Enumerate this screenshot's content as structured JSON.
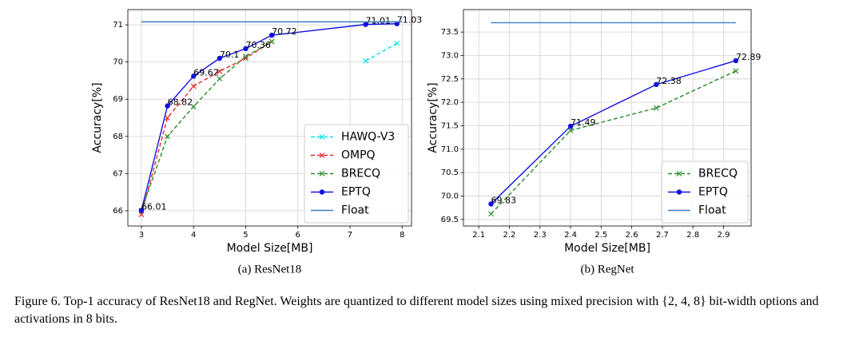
{
  "chart_data": [
    {
      "type": "line",
      "title": "(a) ResNet18",
      "xlabel": "Model Size[MB]",
      "ylabel": "Accuracy[%]",
      "xlim": [
        2.74,
        8.18
      ],
      "ylim": [
        65.59,
        71.41
      ],
      "xticks": [
        3,
        4,
        5,
        6,
        7,
        8
      ],
      "yticks": [
        66,
        67,
        68,
        69,
        70,
        71
      ],
      "grid": true,
      "legend": "lower right",
      "series": [
        {
          "name": "HAWQ-V3",
          "color": "#00e5e5",
          "marker": "x",
          "linestyle": "dashed",
          "x": [
            7.3,
            7.9
          ],
          "values": [
            70.03,
            70.5
          ]
        },
        {
          "name": "OMPQ",
          "color": "#e8262a",
          "marker": "x",
          "linestyle": "dashed",
          "x": [
            3,
            3.5,
            4,
            4.5,
            5,
            5.5
          ],
          "values": [
            65.9,
            68.5,
            69.35,
            69.75,
            70.1,
            70.55
          ]
        },
        {
          "name": "BRECQ",
          "color": "#2a8a2a",
          "marker": "x",
          "linestyle": "dashed",
          "x": [
            3,
            3.5,
            4,
            4.5,
            5,
            5.5
          ],
          "values": [
            66.0,
            68.0,
            68.8,
            69.55,
            70.15,
            70.55
          ]
        },
        {
          "name": "EPTQ",
          "color": "#1010e0",
          "marker": "o",
          "linestyle": "solid",
          "show_values": true,
          "x": [
            3,
            3.5,
            4,
            4.5,
            5,
            5.5,
            7.3,
            7.9
          ],
          "values": [
            66.01,
            68.82,
            69.62,
            70.1,
            70.36,
            70.72,
            71.01,
            71.03
          ]
        },
        {
          "name": "Float",
          "color": "#3a7ebf",
          "marker": null,
          "linestyle": "solid",
          "x": [
            3,
            8
          ],
          "values": [
            71.08,
            71.08
          ]
        }
      ]
    },
    {
      "type": "line",
      "title": "(b) RegNet",
      "xlabel": "Model Size[MB]",
      "ylabel": "Accuracy[%]",
      "xlim": [
        2.05,
        2.99
      ],
      "ylim": [
        69.36,
        73.98
      ],
      "xticks": [
        2.1,
        2.2,
        2.3,
        2.4,
        2.5,
        2.6,
        2.7,
        2.8,
        2.9
      ],
      "yticks": [
        69.5,
        {
          "value": 70,
          "label": "70.0"
        },
        70.5,
        {
          "value": 71,
          "label": "71.0"
        },
        71.5,
        {
          "value": 72,
          "label": "72.0"
        },
        72.5,
        {
          "value": 73,
          "label": "73.0"
        },
        73.5
      ],
      "grid": true,
      "legend": "lower right",
      "series": [
        {
          "name": "BRECQ",
          "color": "#2a8a2a",
          "marker": "x",
          "linestyle": "dashed",
          "x": [
            2.14,
            2.4,
            2.68,
            2.94
          ],
          "values": [
            69.62,
            71.4,
            71.88,
            72.67
          ]
        },
        {
          "name": "EPTQ",
          "color": "#1010e0",
          "marker": "o",
          "linestyle": "solid",
          "show_values": true,
          "x": [
            2.14,
            2.4,
            2.68,
            2.94
          ],
          "values": [
            69.83,
            71.49,
            72.38,
            72.89
          ]
        },
        {
          "name": "Float",
          "color": "#3a7ebf",
          "marker": null,
          "linestyle": "solid",
          "x": [
            2.14,
            2.94
          ],
          "values": [
            73.7,
            73.7
          ]
        }
      ]
    }
  ],
  "caption": "Figure 6. Top-1 accuracy of ResNet18 and RegNet. Weights are quantized to different model sizes using mixed precision with {2, 4, 8} bit-width options and activations in 8 bits."
}
